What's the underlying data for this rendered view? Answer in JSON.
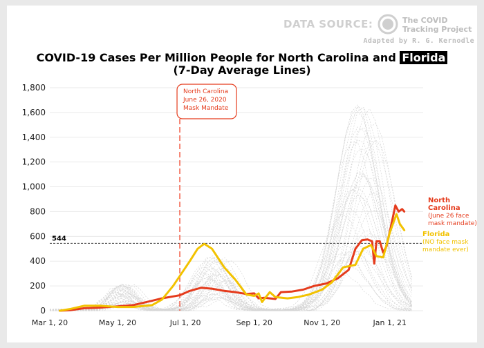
{
  "header": {
    "data_source_label": "DATA SOURCE:",
    "org_line1": "The COVID",
    "org_line2": "Tracking Project",
    "adapted_by": "Adapted by R. G. Kernodle",
    "title_line1": "COVID-19 Cases Per Million People for North Carolina and",
    "title_highlight": "Florida",
    "title_line2": "(7-Day Average Lines)"
  },
  "chart_data": {
    "type": "line",
    "title": "COVID-19 Cases Per Million People for North Carolina and Florida",
    "subtitle": "(7-Day Average Lines)",
    "xlabel": "",
    "ylabel": "",
    "x_ticks": [
      "Mar 1, 20",
      "May 1, 20",
      "Jul 1, 20",
      "Sep 1, 20",
      "Nov 1, 20",
      "Jan 1, 21"
    ],
    "y_ticks": [
      "0",
      "200",
      "400",
      "600",
      "800",
      "1,000",
      "1,200",
      "1,400",
      "1,600",
      "1,800"
    ],
    "ylim": [
      0,
      1850
    ],
    "x_range": [
      "2020-03-01",
      "2021-01-31"
    ],
    "grid": true,
    "reference_line": {
      "value": 544,
      "label": "544"
    },
    "annotation": {
      "date": "2020-06-26",
      "lines": [
        "North Carolina",
        "June 26, 2020",
        "Mask Mandate"
      ]
    },
    "series": [
      {
        "name": "North Carolina",
        "color": "#e53b1c",
        "end_labels": [
          "North",
          "Carolina",
          "(June 26 face",
          "mask mandate)"
        ],
        "points": [
          [
            "2020-03-10",
            0
          ],
          [
            "2020-03-20",
            5
          ],
          [
            "2020-04-01",
            20
          ],
          [
            "2020-04-15",
            25
          ],
          [
            "2020-05-01",
            35
          ],
          [
            "2020-05-15",
            45
          ],
          [
            "2020-06-01",
            80
          ],
          [
            "2020-06-10",
            100
          ],
          [
            "2020-06-26",
            125
          ],
          [
            "2020-07-05",
            160
          ],
          [
            "2020-07-15",
            185
          ],
          [
            "2020-07-25",
            178
          ],
          [
            "2020-08-05",
            160
          ],
          [
            "2020-08-15",
            150
          ],
          [
            "2020-08-25",
            135
          ],
          [
            "2020-09-01",
            140
          ],
          [
            "2020-09-05",
            100
          ],
          [
            "2020-09-10",
            105
          ],
          [
            "2020-09-20",
            95
          ],
          [
            "2020-09-25",
            150
          ],
          [
            "2020-10-05",
            155
          ],
          [
            "2020-10-15",
            170
          ],
          [
            "2020-10-25",
            200
          ],
          [
            "2020-11-05",
            220
          ],
          [
            "2020-11-15",
            260
          ],
          [
            "2020-11-25",
            330
          ],
          [
            "2020-12-01",
            500
          ],
          [
            "2020-12-07",
            570
          ],
          [
            "2020-12-12",
            575
          ],
          [
            "2020-12-16",
            560
          ],
          [
            "2020-12-18",
            380
          ],
          [
            "2020-12-20",
            560
          ],
          [
            "2020-12-23",
            560
          ],
          [
            "2020-12-26",
            470
          ],
          [
            "2020-12-29",
            520
          ],
          [
            "2021-01-02",
            680
          ],
          [
            "2021-01-06",
            850
          ],
          [
            "2021-01-09",
            800
          ],
          [
            "2021-01-12",
            820
          ],
          [
            "2021-01-14",
            800
          ]
        ]
      },
      {
        "name": "Florida",
        "color": "#f2c200",
        "end_labels": [
          "Florida",
          "(NO face mask",
          "mandate ever)"
        ],
        "points": [
          [
            "2020-03-10",
            0
          ],
          [
            "2020-03-20",
            15
          ],
          [
            "2020-04-01",
            40
          ],
          [
            "2020-04-15",
            40
          ],
          [
            "2020-05-01",
            30
          ],
          [
            "2020-05-15",
            30
          ],
          [
            "2020-06-01",
            45
          ],
          [
            "2020-06-10",
            90
          ],
          [
            "2020-06-20",
            200
          ],
          [
            "2020-06-26",
            280
          ],
          [
            "2020-07-05",
            400
          ],
          [
            "2020-07-12",
            500
          ],
          [
            "2020-07-18",
            540
          ],
          [
            "2020-07-25",
            500
          ],
          [
            "2020-08-05",
            350
          ],
          [
            "2020-08-15",
            250
          ],
          [
            "2020-08-25",
            130
          ],
          [
            "2020-09-01",
            120
          ],
          [
            "2020-09-05",
            140
          ],
          [
            "2020-09-08",
            70
          ],
          [
            "2020-09-15",
            150
          ],
          [
            "2020-09-20",
            110
          ],
          [
            "2020-10-01",
            100
          ],
          [
            "2020-10-10",
            110
          ],
          [
            "2020-10-20",
            130
          ],
          [
            "2020-11-01",
            170
          ],
          [
            "2020-11-10",
            230
          ],
          [
            "2020-11-20",
            350
          ],
          [
            "2020-12-01",
            370
          ],
          [
            "2020-12-08",
            500
          ],
          [
            "2020-12-15",
            530
          ],
          [
            "2020-12-20",
            440
          ],
          [
            "2020-12-26",
            430
          ],
          [
            "2021-01-01",
            630
          ],
          [
            "2021-01-07",
            780
          ],
          [
            "2021-01-10",
            700
          ],
          [
            "2021-01-14",
            650
          ]
        ]
      }
    ]
  }
}
